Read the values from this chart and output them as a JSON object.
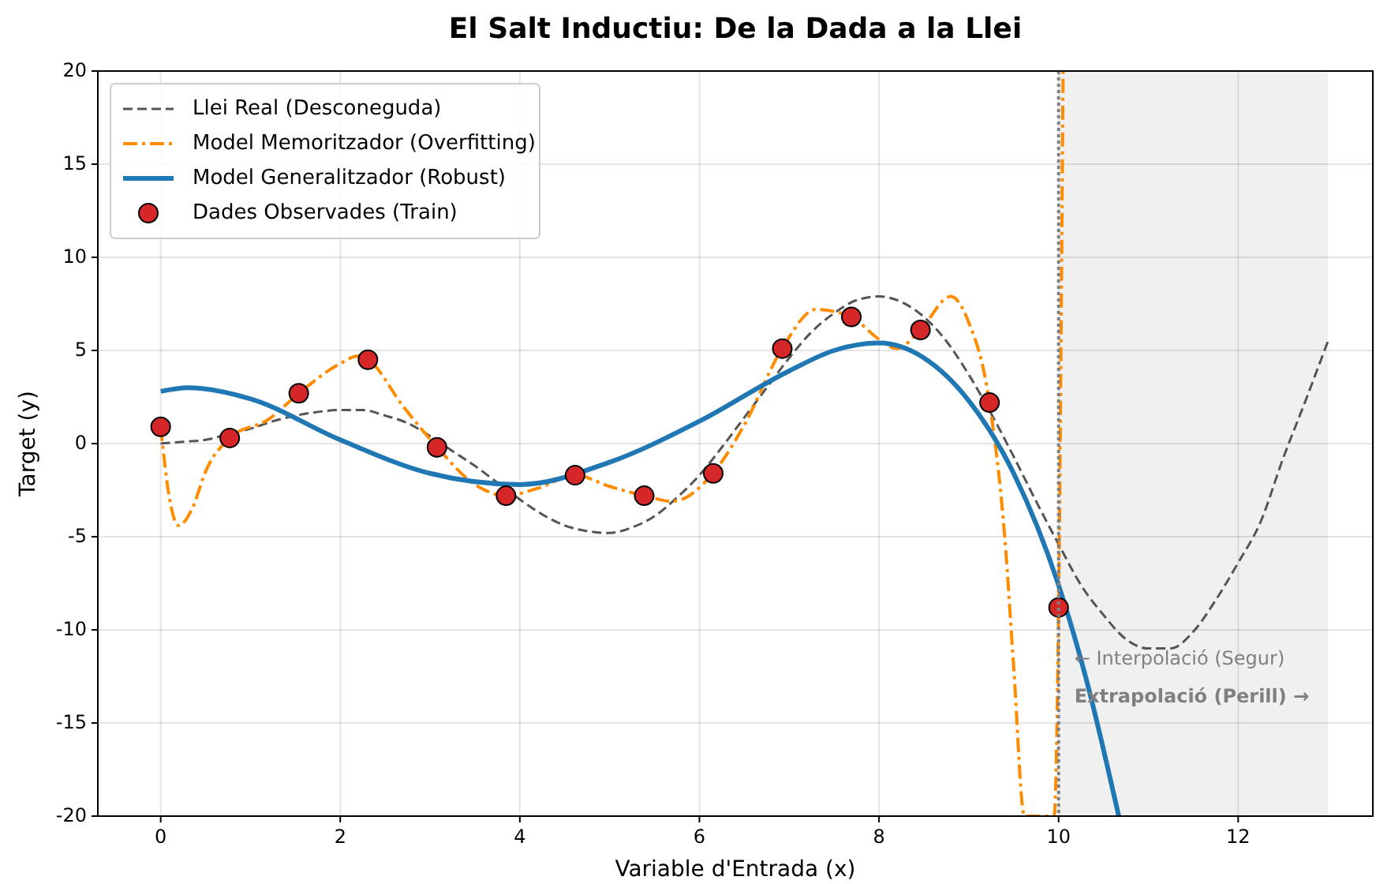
{
  "chart_data": {
    "type": "line",
    "title": "El Salt Inductiu: De la Dada a la Llei",
    "xlabel": "Variable d'Entrada (x)",
    "ylabel": "Target (y)",
    "xlim": [
      -0.7,
      13.5
    ],
    "ylim": [
      -20,
      20
    ],
    "xticks": [
      0,
      2,
      4,
      6,
      8,
      10,
      12
    ],
    "yticks": [
      -20,
      -15,
      -10,
      -5,
      0,
      5,
      10,
      15,
      20
    ],
    "grid": true,
    "legend": "top left",
    "series": [
      {
        "name": "Llei Real (Desconeguda)",
        "color": "#555555",
        "line_style": "dashed",
        "x": [
          0,
          0.25,
          0.5,
          0.75,
          1,
          1.25,
          1.5,
          1.75,
          2,
          2.25,
          2.5,
          2.75,
          3,
          3.25,
          3.5,
          3.75,
          4,
          4.25,
          4.5,
          4.75,
          5,
          5.25,
          5.5,
          5.75,
          6,
          6.25,
          6.5,
          6.75,
          7,
          7.25,
          7.5,
          7.75,
          8,
          8.25,
          8.5,
          8.75,
          9,
          9.25,
          9.5,
          9.75,
          10,
          10.25,
          10.5,
          10.75,
          11,
          11.25,
          11.5,
          11.75,
          12,
          12.25,
          12.5,
          12.75,
          13
        ],
        "values": [
          0,
          0.1,
          0.2,
          0.5,
          0.8,
          1.2,
          1.5,
          1.7,
          1.8,
          1.8,
          1.5,
          1.1,
          0.4,
          -0.4,
          -1.2,
          -2.1,
          -3.0,
          -3.8,
          -4.4,
          -4.7,
          -4.8,
          -4.5,
          -3.9,
          -2.9,
          -1.7,
          -0.2,
          1.4,
          3.0,
          4.6,
          6.0,
          7.0,
          7.7,
          7.9,
          7.6,
          6.8,
          5.5,
          3.7,
          1.6,
          -0.7,
          -3.1,
          -5.4,
          -7.6,
          -9.2,
          -10.5,
          -11.0,
          -11.0,
          -10.1,
          -8.4,
          -6.4,
          -4.2,
          -0.8,
          2.3,
          5.5
        ]
      },
      {
        "name": "Model Memoritzador (Overfitting)",
        "color": "#ff8c00",
        "line_style": "dashdot",
        "x": [
          0,
          0.1,
          0.2,
          0.35,
          0.5,
          0.77,
          1.2,
          1.54,
          2,
          2.2,
          2.31,
          2.7,
          3.08,
          3.5,
          3.85,
          4.2,
          4.62,
          5,
          5.39,
          5.7,
          6.15,
          6.5,
          6.92,
          7.3,
          7.69,
          8,
          8.2,
          8.46,
          8.8,
          9,
          9.23,
          9.4,
          9.5,
          9.62,
          9.95,
          10,
          10.05
        ],
        "values": [
          0.9,
          -3,
          -4.4,
          -3.5,
          -1.5,
          0.3,
          1.3,
          2.7,
          4.3,
          4.7,
          4.5,
          2.0,
          -0.2,
          -2.2,
          -2.8,
          -2.4,
          -1.7,
          -2.3,
          -2.8,
          -3.1,
          -1.6,
          1.0,
          5.1,
          7.2,
          6.8,
          5.6,
          5.1,
          6.1,
          7.9,
          6.5,
          2.2,
          -5,
          -12,
          -20,
          -20,
          -8.8,
          20
        ]
      },
      {
        "name": "Model Generalitzador (Robust)",
        "color": "#1f77b4",
        "line_style": "solid",
        "x": [
          0,
          0.3,
          1,
          2,
          3,
          4,
          5,
          6,
          7,
          7.5,
          8,
          8.5,
          9,
          9.5,
          10,
          10.3,
          10.67
        ],
        "values": [
          2.8,
          3.0,
          2.4,
          0.2,
          -1.6,
          -2.2,
          -1.0,
          1.2,
          3.9,
          5.0,
          5.4,
          4.6,
          2.3,
          -1.6,
          -7.6,
          -12.5,
          -20
        ]
      },
      {
        "name": "Dades Observades (Train)",
        "type": "scatter",
        "marker": "circle",
        "color": "#d62728",
        "x": [
          0,
          0.769,
          1.538,
          2.308,
          3.077,
          3.846,
          4.615,
          5.385,
          6.154,
          6.923,
          7.692,
          8.462,
          9.231,
          10
        ],
        "values": [
          0.9,
          0.3,
          2.7,
          4.5,
          -0.2,
          -2.8,
          -1.7,
          -2.8,
          -1.6,
          5.1,
          6.8,
          6.1,
          2.2,
          -8.8
        ]
      }
    ],
    "ref_lines": [
      {
        "axis": "x",
        "value": 10,
        "color": "#808080",
        "line_style": "dotted"
      }
    ],
    "bands": [
      {
        "axis": "x",
        "from": 10,
        "to": 13,
        "color": "#f0f0f0"
      }
    ],
    "annotations": [
      "← Interpolació (Segur)",
      "Extrapolació (Perill) →"
    ]
  }
}
